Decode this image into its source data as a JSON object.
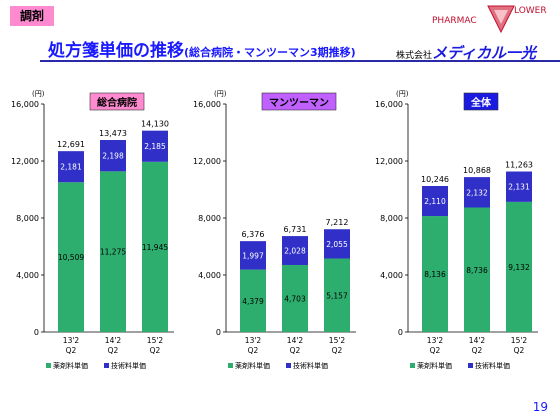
{
  "header": {
    "tag": "調剤",
    "title": "処方箋単価の推移",
    "title_sub": "(総合病院・マンツーマン3期推移)",
    "company_prefix": "株式会社",
    "company_name": "メディカル一光",
    "logo_text_left": "PHARMAC",
    "logo_text_right": "LOWER",
    "page_number": "19"
  },
  "colors": {
    "drug_fee": "#2eae6e",
    "tech_fee": "#3030c8",
    "tag_general": "#ff8ad0",
    "tag_mantoman": "#c060ff",
    "tag_total": "#1a1ae0",
    "title": "#1a1aff"
  },
  "chart_data": [
    {
      "type": "bar",
      "stacked": true,
      "title": "総合病院",
      "unit_label": "(円)",
      "categories": [
        "13'2\nQ2",
        "14'2\nQ2",
        "15'2\nQ2"
      ],
      "series": [
        {
          "name": "薬剤料単価",
          "values": [
            10509,
            11275,
            11945
          ]
        },
        {
          "name": "技術料単価",
          "values": [
            2181,
            2198,
            2185
          ]
        }
      ],
      "totals": [
        12691,
        13473,
        14130
      ],
      "y_ticks": [
        "0",
        "4,000",
        "8,000",
        "12,000",
        "16,000"
      ],
      "ylim": [
        0,
        16000
      ],
      "legend": "bottom"
    },
    {
      "type": "bar",
      "stacked": true,
      "title": "マンツーマン",
      "unit_label": "(円)",
      "categories": [
        "13'2\nQ2",
        "14'2\nQ2",
        "15'2\nQ2"
      ],
      "series": [
        {
          "name": "薬剤料単価",
          "values": [
            4379,
            4703,
            5157
          ]
        },
        {
          "name": "技術料単価",
          "values": [
            1997,
            2028,
            2055
          ]
        }
      ],
      "totals": [
        6376,
        6731,
        7212
      ],
      "y_ticks": [
        "0",
        "4,000",
        "8,000",
        "12,000",
        "16,000"
      ],
      "ylim": [
        0,
        16000
      ],
      "legend": "bottom"
    },
    {
      "type": "bar",
      "stacked": true,
      "title": "全体",
      "unit_label": "(円)",
      "categories": [
        "13'2\nQ2",
        "14'2\nQ2",
        "15'2\nQ2"
      ],
      "series": [
        {
          "name": "薬剤料単価",
          "values": [
            8136,
            8736,
            9132
          ]
        },
        {
          "name": "技術料単価",
          "values": [
            2110,
            2132,
            2131
          ]
        }
      ],
      "totals": [
        10246,
        10868,
        11263
      ],
      "y_ticks": [
        "0",
        "4,000",
        "8,000",
        "12,000",
        "16,000"
      ],
      "ylim": [
        0,
        16000
      ],
      "legend": "bottom"
    }
  ]
}
